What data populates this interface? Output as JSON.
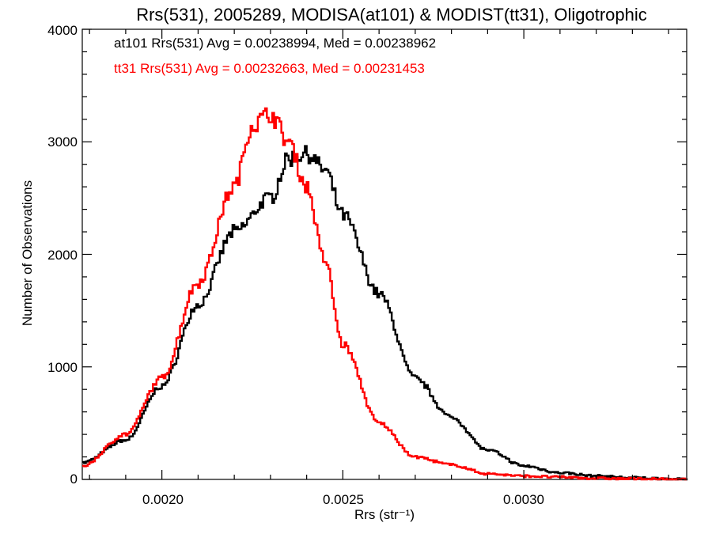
{
  "chart_data": {
    "type": "line",
    "title": "Rrs(531), 2005289, MODISA(at101) & MODIST(tt31), Oligotrophic",
    "xlabel": "Rrs (str⁻¹)",
    "ylabel": "Number of Observations",
    "xlim": [
      0.00178,
      0.00345
    ],
    "ylim": [
      0,
      4000
    ],
    "x_ticks": [
      0.002,
      0.0025,
      0.003
    ],
    "x_tick_labels": [
      "0.0020",
      "0.0025",
      "0.0030"
    ],
    "y_ticks": [
      0,
      1000,
      2000,
      3000,
      4000
    ],
    "y_tick_labels": [
      "0",
      "1000",
      "2000",
      "3000",
      "4000"
    ],
    "grid": false,
    "legend_position": "top-left",
    "series": [
      {
        "name": "at101",
        "label": "at101 Rrs(531) Avg = 0.00238994, Med = 0.00238962",
        "color": "#000000",
        "style": "step",
        "x": [
          0.00178,
          0.0019,
          0.002,
          0.0021,
          0.0022,
          0.0023,
          0.00235,
          0.0024,
          0.00245,
          0.0025,
          0.0026,
          0.0027,
          0.0028,
          0.0029,
          0.003,
          0.0031,
          0.0032,
          0.0033,
          0.00345
        ],
        "y": [
          150,
          350,
          830,
          1550,
          2200,
          2500,
          2850,
          2900,
          2750,
          2350,
          1650,
          900,
          550,
          260,
          120,
          60,
          30,
          15,
          0
        ]
      },
      {
        "name": "tt31",
        "label": "tt31 Rrs(531) Avg = 0.00232663, Med = 0.00231453",
        "color": "#ff0000",
        "style": "step",
        "x": [
          0.00178,
          0.0019,
          0.002,
          0.0021,
          0.0022,
          0.00225,
          0.0023,
          0.00235,
          0.0024,
          0.00245,
          0.0025,
          0.0026,
          0.0027,
          0.0028,
          0.0029,
          0.003,
          0.0031,
          0.0032,
          0.0033,
          0.00345
        ],
        "y": [
          120,
          400,
          900,
          1750,
          2600,
          3150,
          3250,
          3000,
          2600,
          1950,
          1200,
          500,
          200,
          130,
          50,
          30,
          20,
          10,
          5,
          0
        ]
      }
    ]
  }
}
